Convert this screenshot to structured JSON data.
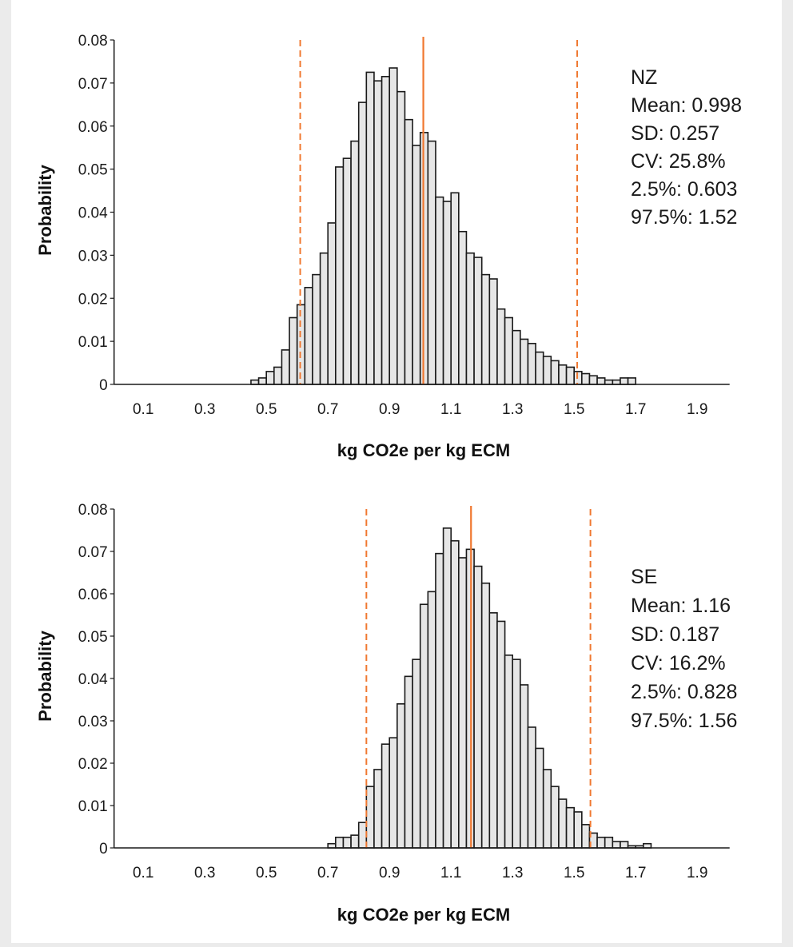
{
  "colors": {
    "bar_fill": "#e6e6e6",
    "bar_stroke": "#1a1a1a",
    "reference_line": "#f07830"
  },
  "chart_data": [
    {
      "type": "bar",
      "title": "",
      "xlabel": "kg CO2e per kg ECM",
      "ylabel": "Probability",
      "xlim": [
        0,
        2.0
      ],
      "ylim": [
        0,
        0.08
      ],
      "x_ticks": [
        "0.1",
        "0.3",
        "0.5",
        "0.7",
        "0.9",
        "1.1",
        "1.3",
        "1.5",
        "1.7",
        "1.9"
      ],
      "y_ticks": [
        "0",
        "0.01",
        "0.02",
        "0.03",
        "0.04",
        "0.05",
        "0.06",
        "0.07",
        "0.08"
      ],
      "bin_width": 0.025,
      "bins_start": 0.0,
      "values": [
        0,
        0,
        0,
        0,
        0,
        0,
        0,
        0,
        0,
        0,
        0,
        0,
        0,
        0,
        0,
        0,
        0,
        0,
        0.001,
        0.0015,
        0.003,
        0.004,
        0.008,
        0.0155,
        0.0185,
        0.0225,
        0.0255,
        0.0305,
        0.0375,
        0.0505,
        0.0525,
        0.0565,
        0.0655,
        0.0725,
        0.0705,
        0.0715,
        0.0735,
        0.068,
        0.0615,
        0.0555,
        0.0585,
        0.0565,
        0.0435,
        0.0425,
        0.0445,
        0.0355,
        0.0305,
        0.0295,
        0.0255,
        0.0245,
        0.0175,
        0.0155,
        0.0125,
        0.0105,
        0.0095,
        0.0075,
        0.0065,
        0.0055,
        0.0045,
        0.004,
        0.003,
        0.0025,
        0.002,
        0.0015,
        0.001,
        0.001,
        0.0015,
        0.0015
      ],
      "median": 1.01,
      "p2_5": 0.61,
      "p97_5": 1.51,
      "annotation": {
        "label": "NZ",
        "mean": "Mean: 0.998",
        "sd": "SD: 0.257",
        "cv": "CV: 25.8%",
        "p2_5": "2.5%: 0.603",
        "p97_5": "97.5%: 1.52"
      }
    },
    {
      "type": "bar",
      "title": "",
      "xlabel": "kg CO2e per kg ECM",
      "ylabel": "Probability",
      "xlim": [
        0,
        2.0
      ],
      "ylim": [
        0,
        0.08
      ],
      "x_ticks": [
        "0.1",
        "0.3",
        "0.5",
        "0.7",
        "0.9",
        "1.1",
        "1.3",
        "1.5",
        "1.7",
        "1.9"
      ],
      "y_ticks": [
        "0",
        "0.01",
        "0.02",
        "0.03",
        "0.04",
        "0.05",
        "0.06",
        "0.07",
        "0.08"
      ],
      "bin_width": 0.025,
      "bins_start": 0.0,
      "values": [
        0,
        0,
        0,
        0,
        0,
        0,
        0,
        0,
        0,
        0,
        0,
        0,
        0,
        0,
        0,
        0,
        0,
        0,
        0,
        0,
        0,
        0,
        0,
        0,
        0,
        0,
        0,
        0,
        0.001,
        0.0025,
        0.0025,
        0.003,
        0.006,
        0.0145,
        0.0185,
        0.0245,
        0.026,
        0.034,
        0.0405,
        0.0445,
        0.0575,
        0.0605,
        0.0695,
        0.0755,
        0.0725,
        0.0685,
        0.0705,
        0.0665,
        0.0625,
        0.0555,
        0.0535,
        0.0455,
        0.0445,
        0.0385,
        0.0285,
        0.0235,
        0.0185,
        0.0145,
        0.0115,
        0.0095,
        0.0085,
        0.0055,
        0.0035,
        0.0025,
        0.0025,
        0.0015,
        0.0015,
        0.0005,
        0.0005,
        0.001
      ],
      "median": 1.165,
      "p2_5": 0.825,
      "p97_5": 1.553,
      "annotation": {
        "label": "SE",
        "mean": "Mean: 1.16",
        "sd": "SD: 0.187",
        "cv": "CV: 16.2%",
        "p2_5": "2.5%: 0.828",
        "p97_5": "97.5%: 1.56"
      }
    }
  ]
}
